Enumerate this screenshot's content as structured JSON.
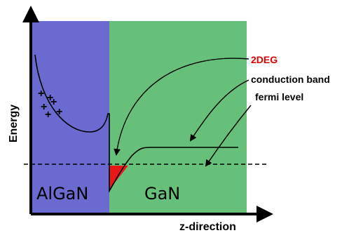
{
  "axes": {
    "y_label": "Energy",
    "x_label": "z-direction"
  },
  "regions": {
    "barrier": {
      "label": "AlGaN",
      "color": "#6a6ad0"
    },
    "channel": {
      "label": "GaN",
      "color": "#66c07a"
    }
  },
  "charges": {
    "symbol": "+",
    "count": 6
  },
  "legend": {
    "twodeg": {
      "label": "2DEG",
      "color": "#e00000"
    },
    "conduction_band": {
      "label": "conduction band",
      "color": "#000000"
    },
    "fermi_level": {
      "label": "fermi level",
      "color": "#000000"
    }
  },
  "colors": {
    "axis": "#000000",
    "twodeg_fill": "#e81818"
  }
}
